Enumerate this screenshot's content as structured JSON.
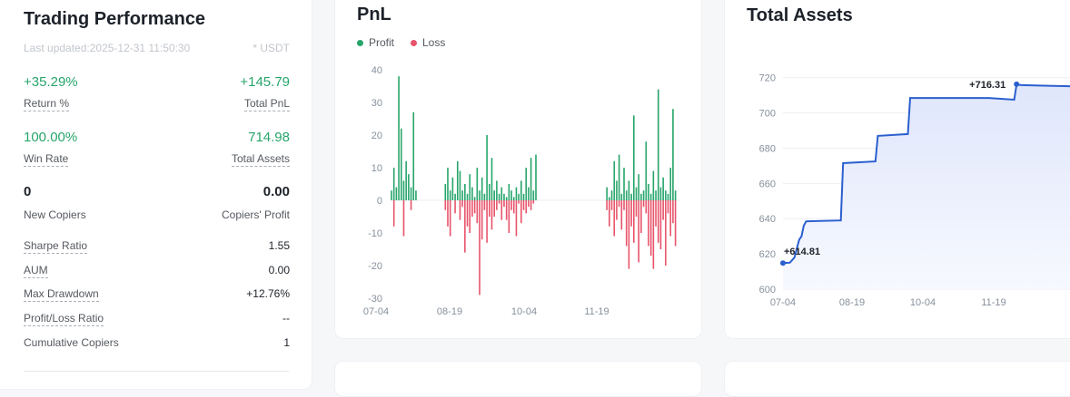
{
  "performance": {
    "title": "Trading Performance",
    "last_updated": "Last updated:2025-12-31 11:50:30",
    "currency_note": "* USDT",
    "return_pct": "+35.29%",
    "return_label": "Return %",
    "total_pnl": "+145.79",
    "total_pnl_label": "Total PnL",
    "win_rate": "100.00%",
    "win_rate_label": "Win Rate",
    "total_assets": "714.98",
    "total_assets_label": "Total Assets",
    "new_copiers": "0",
    "new_copiers_label": "New Copiers",
    "copiers_profit": "0.00",
    "copiers_profit_label": "Copiers' Profit",
    "rows": [
      {
        "label": "Sharpe Ratio",
        "value": "1.55",
        "dashed": true
      },
      {
        "label": "AUM",
        "value": "0.00",
        "dashed": true
      },
      {
        "label": "Max Drawdown",
        "value": "+12.76%",
        "dashed": true
      },
      {
        "label": "Profit/Loss Ratio",
        "value": "--",
        "dashed": true
      },
      {
        "label": "Cumulative Copiers",
        "value": "1",
        "dashed": false
      }
    ]
  },
  "chart_data": [
    {
      "type": "bar",
      "title": "PnL",
      "legend": [
        "Profit",
        "Loss"
      ],
      "colors": {
        "profit": "#27a56b",
        "loss": "#e8546b"
      },
      "ylim": [
        -30,
        40
      ],
      "yticks": [
        40,
        30,
        20,
        10,
        0,
        -10,
        -20,
        -30
      ],
      "xticks": [
        "07-04",
        "08-19",
        "10-04",
        "11-19"
      ],
      "bars": [
        {
          "x": 0,
          "profit": 3,
          "loss": 0
        },
        {
          "x": 1,
          "profit": 10,
          "loss": -8
        },
        {
          "x": 2,
          "profit": 4,
          "loss": 0
        },
        {
          "x": 3,
          "profit": 38,
          "loss": 0
        },
        {
          "x": 4,
          "profit": 22,
          "loss": 0
        },
        {
          "x": 5,
          "profit": 6,
          "loss": -11
        },
        {
          "x": 6,
          "profit": 12,
          "loss": 0
        },
        {
          "x": 7,
          "profit": 8,
          "loss": 0
        },
        {
          "x": 8,
          "profit": 4,
          "loss": -3
        },
        {
          "x": 9,
          "profit": 27,
          "loss": 0
        },
        {
          "x": 10,
          "profit": 3,
          "loss": 0
        },
        {
          "x": 22,
          "profit": 5,
          "loss": -3
        },
        {
          "x": 23,
          "profit": 10,
          "loss": -8
        },
        {
          "x": 24,
          "profit": 3,
          "loss": -11
        },
        {
          "x": 25,
          "profit": 7,
          "loss": 0
        },
        {
          "x": 26,
          "profit": 2,
          "loss": -4
        },
        {
          "x": 27,
          "profit": 12,
          "loss": 0
        },
        {
          "x": 28,
          "profit": 9,
          "loss": -6
        },
        {
          "x": 29,
          "profit": 3,
          "loss": -2
        },
        {
          "x": 30,
          "profit": 5,
          "loss": -16
        },
        {
          "x": 31,
          "profit": 2,
          "loss": -8
        },
        {
          "x": 32,
          "profit": 8,
          "loss": -10
        },
        {
          "x": 33,
          "profit": 4,
          "loss": -5
        },
        {
          "x": 34,
          "profit": 1,
          "loss": -4
        },
        {
          "x": 35,
          "profit": 10,
          "loss": -7
        },
        {
          "x": 36,
          "profit": 3,
          "loss": -29
        },
        {
          "x": 37,
          "profit": 7,
          "loss": -12
        },
        {
          "x": 38,
          "profit": 2,
          "loss": -3
        },
        {
          "x": 39,
          "profit": 20,
          "loss": -13
        },
        {
          "x": 40,
          "profit": 5,
          "loss": -5
        },
        {
          "x": 41,
          "profit": 13,
          "loss": -9
        },
        {
          "x": 42,
          "profit": 3,
          "loss": -5
        },
        {
          "x": 43,
          "profit": 6,
          "loss": -3
        },
        {
          "x": 44,
          "profit": 2,
          "loss": -1
        },
        {
          "x": 45,
          "profit": 4,
          "loss": -6
        },
        {
          "x": 46,
          "profit": 2,
          "loss": -2
        },
        {
          "x": 47,
          "profit": 1,
          "loss": -6
        },
        {
          "x": 48,
          "profit": 5,
          "loss": -10
        },
        {
          "x": 49,
          "profit": 3,
          "loss": -3
        },
        {
          "x": 50,
          "profit": 1,
          "loss": -4
        },
        {
          "x": 51,
          "profit": 4,
          "loss": -11
        },
        {
          "x": 52,
          "profit": 2,
          "loss": -1
        },
        {
          "x": 53,
          "profit": 6,
          "loss": -7
        },
        {
          "x": 54,
          "profit": 2,
          "loss": -3
        },
        {
          "x": 55,
          "profit": 10,
          "loss": -4
        },
        {
          "x": 56,
          "profit": 4,
          "loss": -2
        },
        {
          "x": 57,
          "profit": 13,
          "loss": -3
        },
        {
          "x": 58,
          "profit": 3,
          "loss": -1
        },
        {
          "x": 59,
          "profit": 14,
          "loss": 0
        },
        {
          "x": 88,
          "profit": 4,
          "loss": -3
        },
        {
          "x": 89,
          "profit": 1,
          "loss": -8
        },
        {
          "x": 90,
          "profit": 3,
          "loss": -3
        },
        {
          "x": 91,
          "profit": 12,
          "loss": -11
        },
        {
          "x": 92,
          "profit": 6,
          "loss": -6
        },
        {
          "x": 93,
          "profit": 14,
          "loss": -2
        },
        {
          "x": 94,
          "profit": 2,
          "loss": -9
        },
        {
          "x": 95,
          "profit": 10,
          "loss": -3
        },
        {
          "x": 96,
          "profit": 3,
          "loss": -14
        },
        {
          "x": 97,
          "profit": 6,
          "loss": -21
        },
        {
          "x": 98,
          "profit": 2,
          "loss": -8
        },
        {
          "x": 99,
          "profit": 26,
          "loss": -13
        },
        {
          "x": 100,
          "profit": 4,
          "loss": -5
        },
        {
          "x": 101,
          "profit": 8,
          "loss": -19
        },
        {
          "x": 102,
          "profit": 2,
          "loss": -10
        },
        {
          "x": 103,
          "profit": 3,
          "loss": -2
        },
        {
          "x": 104,
          "profit": 18,
          "loss": -4
        },
        {
          "x": 105,
          "profit": 5,
          "loss": -14
        },
        {
          "x": 106,
          "profit": 2,
          "loss": -17
        },
        {
          "x": 107,
          "profit": 9,
          "loss": -21
        },
        {
          "x": 108,
          "profit": 3,
          "loss": -8
        },
        {
          "x": 109,
          "profit": 34,
          "loss": -13
        },
        {
          "x": 110,
          "profit": 4,
          "loss": -15
        },
        {
          "x": 111,
          "profit": 7,
          "loss": -6
        },
        {
          "x": 112,
          "profit": 3,
          "loss": -20
        },
        {
          "x": 113,
          "profit": 2,
          "loss": -4
        },
        {
          "x": 114,
          "profit": 10,
          "loss": -11
        },
        {
          "x": 115,
          "profit": 28,
          "loss": -7
        },
        {
          "x": 116,
          "profit": 3,
          "loss": -14
        }
      ],
      "x_range": [
        0,
        118
      ]
    },
    {
      "type": "area",
      "title": "Total Assets",
      "ylim": [
        600,
        725
      ],
      "yticks": [
        720,
        700,
        680,
        660,
        640,
        620,
        600
      ],
      "xticks": [
        "07-04",
        "08-19",
        "10-04",
        "11-19"
      ],
      "x_range": [
        0,
        130
      ],
      "points": [
        [
          0,
          614.8
        ],
        [
          3,
          615
        ],
        [
          5,
          618
        ],
        [
          7,
          628
        ],
        [
          8,
          630
        ],
        [
          9,
          636
        ],
        [
          10,
          638.5
        ],
        [
          25,
          639
        ],
        [
          26,
          671.5
        ],
        [
          40,
          672.5
        ],
        [
          41,
          687
        ],
        [
          54,
          688
        ],
        [
          55,
          708.5
        ],
        [
          89,
          708.5
        ],
        [
          100,
          707.5
        ],
        [
          101,
          716.3
        ],
        [
          103,
          715.8
        ],
        [
          130,
          714.98
        ]
      ],
      "annotations": [
        {
          "text": "+614.81",
          "x": 0,
          "y": 614.81
        },
        {
          "text": "+716.31",
          "x": 101,
          "y": 716.31
        }
      ],
      "colors": {
        "line": "#2b5fcf",
        "fill": "#dfe6fb"
      }
    }
  ]
}
